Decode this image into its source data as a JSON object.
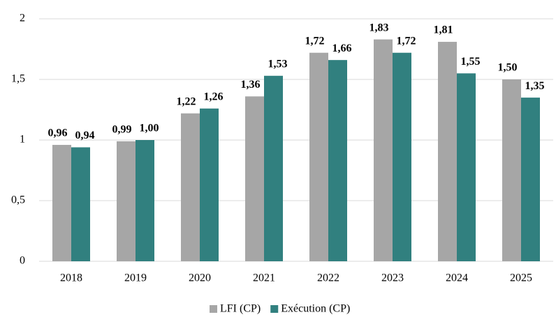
{
  "chart_data": {
    "type": "bar",
    "categories": [
      "2018",
      "2019",
      "2020",
      "2021",
      "2022",
      "2023",
      "2024",
      "2025"
    ],
    "series": [
      {
        "name": "LFI (CP)",
        "color": "#a6a6a6",
        "values": [
          0.96,
          0.99,
          1.22,
          1.36,
          1.72,
          1.83,
          1.81,
          1.5
        ],
        "value_labels": [
          "0,96",
          "0,99",
          "1,22",
          "1,36",
          "1,72",
          "1,83",
          "1,81",
          "1,50"
        ]
      },
      {
        "name": "Exécution (CP)",
        "color": "#31807f",
        "values": [
          0.94,
          1.0,
          1.26,
          1.53,
          1.66,
          1.72,
          1.55,
          1.35
        ],
        "value_labels": [
          "0,94",
          "1,00",
          "1,26",
          "1,53",
          "1,66",
          "1,72",
          "1,55",
          "1,35"
        ]
      }
    ],
    "ylim": [
      0,
      2
    ],
    "yticks": [
      0,
      {
        "value": 0.5,
        "label": "0,5"
      },
      1,
      {
        "value": 1.5,
        "label": "1,5"
      },
      2
    ],
    "grid": true,
    "legend": "bottom"
  }
}
